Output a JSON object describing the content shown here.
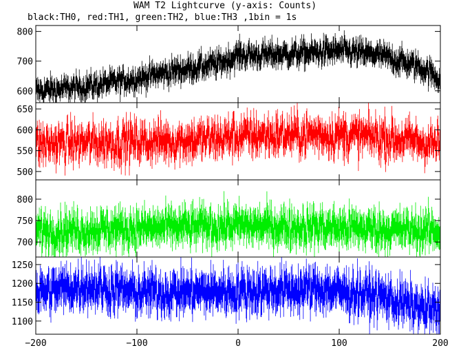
{
  "chart_data": {
    "type": "line",
    "title": "WAM T2 Lightcurve (y-axis: Counts)",
    "subtitle": "black:TH0, red:TH1, green:TH2, blue:TH3 ,1bin = 1s",
    "xlim": [
      -200,
      200
    ],
    "x_ticks": [
      -200,
      -100,
      0,
      100,
      200
    ],
    "x_tick_labels": [
      "−200",
      "−100",
      "0",
      "100",
      "200"
    ],
    "panels": [
      {
        "series": "TH0",
        "color": "#000000",
        "ylim": [
          560,
          820
        ],
        "y_ticks": [
          600,
          700,
          800
        ],
        "keypoints": [
          [
            -200,
            600
          ],
          [
            -160,
            610
          ],
          [
            -120,
            630
          ],
          [
            -80,
            655
          ],
          [
            -40,
            680
          ],
          [
            -20,
            690
          ],
          [
            0,
            720
          ],
          [
            20,
            720
          ],
          [
            60,
            725
          ],
          [
            100,
            735
          ],
          [
            140,
            720
          ],
          [
            180,
            680
          ],
          [
            200,
            640
          ]
        ],
        "noise": 22
      },
      {
        "series": "TH1",
        "color": "#ff0000",
        "ylim": [
          480,
          665
        ],
        "y_ticks": [
          500,
          550,
          600,
          650
        ],
        "keypoints": [
          [
            -200,
            565
          ],
          [
            -120,
            570
          ],
          [
            -40,
            575
          ],
          [
            0,
            585
          ],
          [
            80,
            590
          ],
          [
            140,
            582
          ],
          [
            200,
            565
          ]
        ],
        "noise": 28
      },
      {
        "series": "TH2",
        "color": "#00ee00",
        "ylim": [
          665,
          845
        ],
        "y_ticks": [
          700,
          750,
          800
        ],
        "keypoints": [
          [
            -200,
            725
          ],
          [
            -100,
            732
          ],
          [
            0,
            738
          ],
          [
            100,
            733
          ],
          [
            200,
            725
          ]
        ],
        "noise": 24
      },
      {
        "series": "TH3",
        "color": "#0000ff",
        "ylim": [
          1065,
          1270
        ],
        "y_ticks": [
          1100,
          1150,
          1200,
          1250
        ],
        "keypoints": [
          [
            -200,
            1175
          ],
          [
            -150,
            1195
          ],
          [
            -100,
            1175
          ],
          [
            0,
            1180
          ],
          [
            80,
            1185
          ],
          [
            140,
            1165
          ],
          [
            200,
            1120
          ]
        ],
        "noise": 30
      }
    ],
    "grid": false
  }
}
